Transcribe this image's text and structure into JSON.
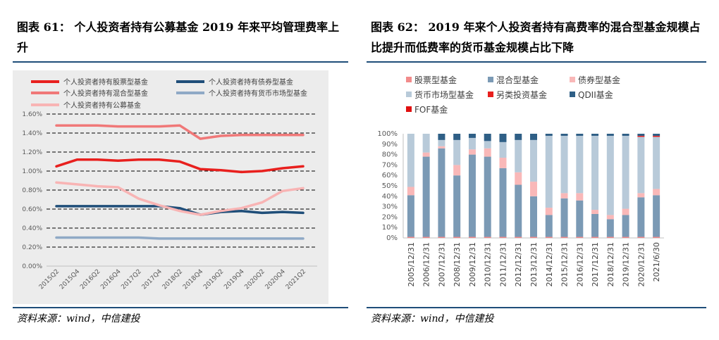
{
  "left": {
    "title": "图表 61： 个人投资者持有公募基金 2019 年来平均管理费率上升",
    "source": "资料来源：wind，中信建投",
    "chart_data": {
      "type": "line",
      "title": "",
      "categories": [
        "2015Q2",
        "2015Q4",
        "2016Q2",
        "2016Q4",
        "2017Q2",
        "2017Q4",
        "2018Q2",
        "2018Q4",
        "2019Q2",
        "2019Q4",
        "2020Q2",
        "2020Q4",
        "2021Q2"
      ],
      "ylim": [
        0,
        1.6
      ],
      "yticks": [
        "0.00%",
        "0.20%",
        "0.40%",
        "0.60%",
        "0.80%",
        "1.00%",
        "1.20%",
        "1.40%",
        "1.60%"
      ],
      "series": [
        {
          "name": "个人投资者持有股票型基金",
          "color": "#e8201e",
          "values": [
            1.05,
            1.12,
            1.12,
            1.11,
            1.12,
            1.12,
            1.1,
            1.02,
            1.01,
            0.99,
            1.0,
            1.03,
            1.05
          ]
        },
        {
          "name": "个人投资者持有债券型基金",
          "color": "#1f4e79",
          "values": [
            0.63,
            0.63,
            0.63,
            0.63,
            0.63,
            0.63,
            0.61,
            0.54,
            0.57,
            0.58,
            0.56,
            0.57,
            0.56
          ]
        },
        {
          "name": "个人投资者持有混合型基金",
          "color": "#f07878",
          "values": [
            1.48,
            1.48,
            1.48,
            1.47,
            1.47,
            1.47,
            1.48,
            1.34,
            1.37,
            1.38,
            1.38,
            1.38,
            1.38
          ]
        },
        {
          "name": "个人投资者持有货币市场型基金",
          "color": "#8fa9c6",
          "values": [
            0.3,
            0.3,
            0.3,
            0.3,
            0.3,
            0.29,
            0.29,
            0.29,
            0.29,
            0.29,
            0.29,
            0.29,
            0.29
          ]
        },
        {
          "name": "个人投资者持有公募基金",
          "color": "#f8b4b4",
          "values": [
            0.88,
            0.86,
            0.84,
            0.83,
            0.71,
            0.64,
            0.58,
            0.54,
            0.58,
            0.61,
            0.67,
            0.79,
            0.82
          ]
        }
      ]
    }
  },
  "right": {
    "title": "图表 62： 2019 年来个人投资者持有高费率的混合型基金规模占比提升而低费率的货币基金规模占比下降",
    "source": "资料来源：wind，中信建投",
    "chart_data": {
      "type": "bar",
      "stacked": true,
      "title": "",
      "categories": [
        "2005/12/31",
        "2006/12/31",
        "2007/12/31",
        "2008/12/31",
        "2009/12/31",
        "2010/12/31",
        "2011/12/31",
        "2012/12/31",
        "2013/12/31",
        "2014/12/31",
        "2015/12/31",
        "2016/12/31",
        "2017/12/31",
        "2018/12/31",
        "2019/12/31",
        "2020/12/31",
        "2021/6/30"
      ],
      "ylim": [
        0,
        100
      ],
      "yticks": [
        "0%",
        "10%",
        "20%",
        "30%",
        "40%",
        "50%",
        "60%",
        "70%",
        "80%",
        "90%",
        "100%"
      ],
      "series": [
        {
          "name": "股票型基金",
          "color": "#f28b8b",
          "values": [
            1,
            1,
            1,
            1,
            1,
            1,
            1,
            1,
            1,
            1,
            1,
            1,
            1,
            1,
            1,
            1,
            1
          ]
        },
        {
          "name": "混合型基金",
          "color": "#7b9ab5",
          "values": [
            40,
            77,
            85,
            59,
            79,
            77,
            66,
            50,
            39,
            21,
            37,
            35,
            22,
            17,
            21,
            38,
            40
          ]
        },
        {
          "name": "债券型基金",
          "color": "#f9b8b8",
          "values": [
            8,
            4,
            2,
            10,
            5,
            8,
            10,
            12,
            14,
            7,
            5,
            7,
            4,
            4,
            6,
            4,
            6
          ]
        },
        {
          "name": "货币市场型基金",
          "color": "#b8cad9",
          "values": [
            51,
            18,
            6,
            24,
            11,
            7,
            15,
            31,
            40,
            69,
            55,
            55,
            71,
            76,
            70,
            54,
            50
          ]
        },
        {
          "name": "另类投资基金",
          "color": "#e8201e",
          "values": [
            0,
            0,
            0,
            0,
            0,
            0,
            0,
            0,
            0,
            0,
            0,
            0,
            0,
            0,
            0,
            1,
            1
          ]
        },
        {
          "name": "QDII基金",
          "color": "#2f5f86",
          "values": [
            0,
            0,
            6,
            6,
            4,
            7,
            8,
            6,
            6,
            2,
            2,
            2,
            2,
            2,
            2,
            2,
            2
          ]
        },
        {
          "name": "FOF基金",
          "color": "#e01010",
          "values": [
            0,
            0,
            0,
            0,
            0,
            0,
            0,
            0,
            0,
            0,
            0,
            0,
            0,
            0,
            0,
            0,
            0
          ]
        }
      ]
    }
  }
}
